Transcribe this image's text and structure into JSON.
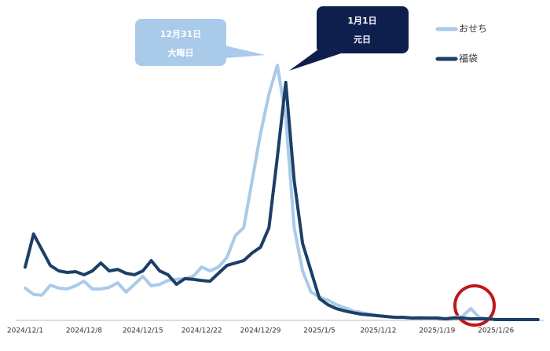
{
  "chart_data": {
    "type": "line",
    "categories": [
      "2024/12/1",
      null,
      null,
      null,
      null,
      null,
      null,
      "2024/12/8",
      null,
      null,
      null,
      null,
      null,
      null,
      "2024/12/15",
      null,
      null,
      null,
      null,
      null,
      null,
      "2024/12/22",
      null,
      null,
      null,
      null,
      null,
      null,
      "2024/12/29",
      null,
      null,
      null,
      null,
      null,
      null,
      "2025/1/5",
      null,
      null,
      null,
      null,
      null,
      null,
      "2025/1/12",
      null,
      null,
      null,
      null,
      null,
      null,
      "2025/1/19",
      null,
      null,
      null,
      null,
      null,
      null,
      "2025/1/26",
      null,
      null,
      null,
      null,
      null
    ],
    "series": [
      {
        "name": "おせち",
        "color": "#a9cbe9",
        "values": [
          12.5,
          10.1,
          9.8,
          13.7,
          12.5,
          12.2,
          13.4,
          15.2,
          12.2,
          12.2,
          12.8,
          14.6,
          11,
          14,
          17.1,
          13.4,
          14,
          15.5,
          15.9,
          16.2,
          17.1,
          20.7,
          19.2,
          20.7,
          24.4,
          32.9,
          36,
          54.3,
          72.6,
          87.8,
          99.1,
          78.7,
          36,
          19.2,
          11,
          9.1,
          7.9,
          6.1,
          4.9,
          3.7,
          3,
          2.4,
          1.8,
          1.5,
          1.2,
          1.2,
          0.9,
          1.2,
          0.9,
          0.9,
          0.6,
          1.2,
          1.5,
          4.6,
          1.2,
          0.6,
          0.3,
          0.3,
          0.3,
          0.3,
          0.3,
          0.3
        ]
      },
      {
        "name": "福袋",
        "color": "#1c3f66",
        "values": [
          20.7,
          33.5,
          27.4,
          21.3,
          19.2,
          18.6,
          18.9,
          17.7,
          19.2,
          22.3,
          19.2,
          19.8,
          18.3,
          17.7,
          19.2,
          23.2,
          19.2,
          17.7,
          14,
          16.2,
          15.9,
          15.5,
          15.2,
          18.3,
          21.3,
          22.3,
          23.2,
          26.2,
          28.4,
          36,
          63.4,
          92.4,
          54.3,
          29.9,
          19.2,
          8.5,
          6.1,
          4.6,
          3.7,
          3,
          2.4,
          2.1,
          1.8,
          1.5,
          1.2,
          1.2,
          0.9,
          0.9,
          0.9,
          0.9,
          0.6,
          0.9,
          0.9,
          0.6,
          0.6,
          0.6,
          0.3,
          0.3,
          0.3,
          0.3,
          0.3,
          0.3
        ]
      }
    ],
    "ylim": [
      0,
      100
    ],
    "annotations": [
      [
        "12月31日",
        "大晦日"
      ],
      [
        "1月1日",
        "元日"
      ]
    ]
  }
}
